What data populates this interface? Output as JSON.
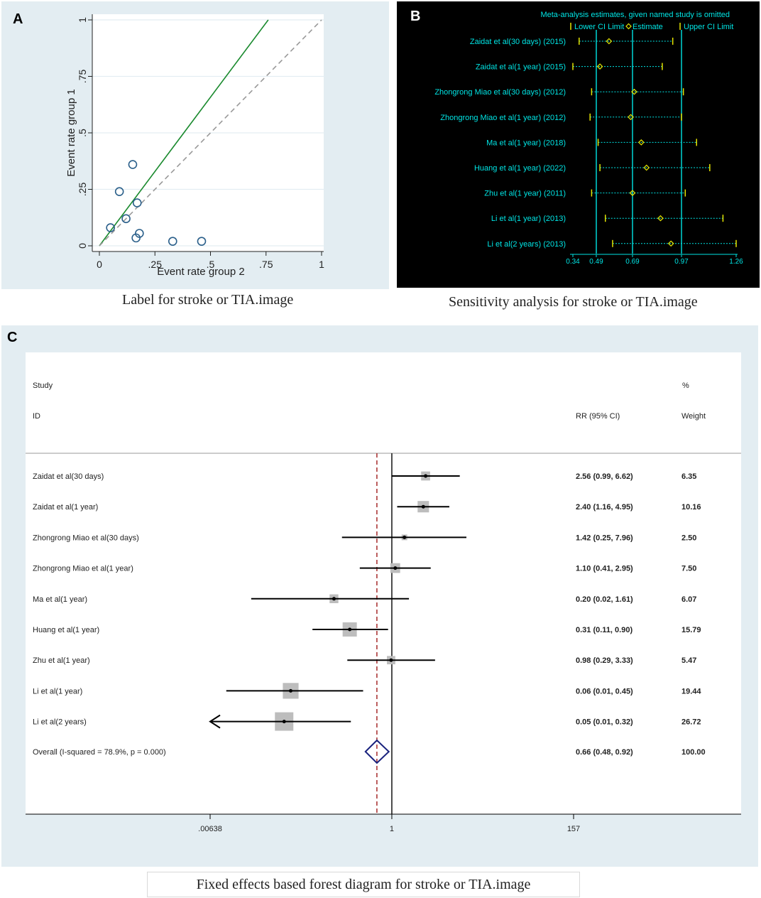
{
  "panels": {
    "a": {
      "label": "A",
      "caption": "Label for stroke or TIA.image",
      "chart_data": {
        "type": "scatter",
        "xlabel": "Event rate group 2",
        "ylabel": "Event rate group 1",
        "xlim": [
          0,
          1
        ],
        "ylim": [
          0,
          1
        ],
        "xticks": [
          0,
          0.25,
          0.5,
          0.75,
          1
        ],
        "xtick_labels": [
          "0",
          ".25",
          ".5",
          ".75",
          "1"
        ],
        "yticks": [
          0,
          0.25,
          0.5,
          0.75,
          1
        ],
        "ytick_labels": [
          "0",
          ".25",
          ".5",
          ".75",
          "1"
        ],
        "points": [
          {
            "x": 0.05,
            "y": 0.08
          },
          {
            "x": 0.09,
            "y": 0.24
          },
          {
            "x": 0.12,
            "y": 0.12
          },
          {
            "x": 0.15,
            "y": 0.36
          },
          {
            "x": 0.165,
            "y": 0.035
          },
          {
            "x": 0.17,
            "y": 0.19
          },
          {
            "x": 0.18,
            "y": 0.055
          },
          {
            "x": 0.33,
            "y": 0.02
          },
          {
            "x": 0.46,
            "y": 0.02
          }
        ],
        "lines": [
          {
            "name": "pooled",
            "from": [
              0,
              0
            ],
            "to": [
              0.76,
              1.0
            ],
            "color": "#1a8a2e",
            "style": "solid"
          },
          {
            "name": "identity",
            "from": [
              0,
              0
            ],
            "to": [
              1,
              1
            ],
            "color": "#999999",
            "style": "dashed"
          }
        ]
      }
    },
    "b": {
      "label": "B",
      "caption": "Sensitivity analysis for stroke or TIA.image",
      "chart_data": {
        "type": "scatter",
        "title": "Meta-analysis estimates, given named study is omitted",
        "legend": [
          "Lower CI Limit",
          "Estimate",
          "Upper CI Limit"
        ],
        "xticks": [
          0.34,
          0.49,
          0.69,
          0.97,
          1.26
        ],
        "xtick_labels": [
          "0.34",
          "0.49",
          "0.69",
          "0.97",
          "1.26"
        ],
        "reference_lines": [
          0.49,
          0.69,
          0.97
        ],
        "studies": [
          {
            "name": "Zaidat et al(30 days)",
            "year": "(2015)",
            "lower": 0.38,
            "estimate": 0.56,
            "upper": 0.92
          },
          {
            "name": "Zaidat et al(1 year)",
            "year": "(2015)",
            "lower": 0.34,
            "estimate": 0.51,
            "upper": 0.86
          },
          {
            "name": "Zhongrong Miao et al(30 days)",
            "year": "(2012)",
            "lower": 0.46,
            "estimate": 0.7,
            "upper": 0.98
          },
          {
            "name": "Zhongrong Miao et al(1 year)",
            "year": "(2012)",
            "lower": 0.45,
            "estimate": 0.68,
            "upper": 0.97
          },
          {
            "name": "Ma et al(1 year)",
            "year": "(2018)",
            "lower": 0.5,
            "estimate": 0.74,
            "upper": 1.05
          },
          {
            "name": "Huang et al(1 year)",
            "year": "(2022)",
            "lower": 0.51,
            "estimate": 0.77,
            "upper": 1.12
          },
          {
            "name": "Zhu et al(1 year)",
            "year": "(2011)",
            "lower": 0.46,
            "estimate": 0.69,
            "upper": 0.99
          },
          {
            "name": "Li et al(1 year)",
            "year": "(2013)",
            "lower": 0.54,
            "estimate": 0.85,
            "upper": 1.19
          },
          {
            "name": "Li et al(2 years)",
            "year": "(2013)",
            "lower": 0.58,
            "estimate": 0.91,
            "upper": 1.26
          }
        ]
      }
    },
    "c": {
      "label": "C",
      "caption": "Fixed effects based forest diagram for stroke or TIA.image",
      "chart_data": {
        "type": "forest",
        "header_study": "Study",
        "header_id": "ID",
        "header_rr": "RR (95% CI)",
        "header_pct": "%",
        "header_weight": "Weight",
        "scale": "log",
        "xticks": [
          0.00638,
          1,
          157
        ],
        "xtick_labels": [
          ".00638",
          "1",
          "157"
        ],
        "null_value": 1,
        "pooled_line": 0.66,
        "studies": [
          {
            "name": "Zaidat et al(30 days)",
            "rr": 2.56,
            "lower": 0.99,
            "upper": 6.62,
            "ci_text": "2.56 (0.99, 6.62)",
            "weight": 6.35,
            "weight_text": "6.35"
          },
          {
            "name": "Zaidat et al(1 year)",
            "rr": 2.4,
            "lower": 1.16,
            "upper": 4.95,
            "ci_text": "2.40 (1.16, 4.95)",
            "weight": 10.16,
            "weight_text": "10.16"
          },
          {
            "name": "Zhongrong Miao et al(30 days)",
            "rr": 1.42,
            "lower": 0.25,
            "upper": 7.96,
            "ci_text": "1.42 (0.25, 7.96)",
            "weight": 2.5,
            "weight_text": "2.50"
          },
          {
            "name": "Zhongrong Miao et al(1 year)",
            "rr": 1.1,
            "lower": 0.41,
            "upper": 2.95,
            "ci_text": "1.10 (0.41, 2.95)",
            "weight": 7.5,
            "weight_text": "7.50"
          },
          {
            "name": "Ma et al(1 year)",
            "rr": 0.2,
            "lower": 0.02,
            "upper": 1.61,
            "ci_text": "0.20 (0.02, 1.61)",
            "weight": 6.07,
            "weight_text": "6.07"
          },
          {
            "name": "Huang et al(1 year)",
            "rr": 0.31,
            "lower": 0.11,
            "upper": 0.9,
            "ci_text": "0.31 (0.11, 0.90)",
            "weight": 15.79,
            "weight_text": "15.79"
          },
          {
            "name": "Zhu et al(1 year)",
            "rr": 0.98,
            "lower": 0.29,
            "upper": 3.33,
            "ci_text": "0.98 (0.29, 3.33)",
            "weight": 5.47,
            "weight_text": "5.47"
          },
          {
            "name": "Li et al(1 year)",
            "rr": 0.06,
            "lower": 0.01,
            "upper": 0.45,
            "ci_text": "0.06 (0.01, 0.45)",
            "weight": 19.44,
            "weight_text": "19.44"
          },
          {
            "name": "Li et al(2 years)",
            "rr": 0.05,
            "lower": 0.01,
            "upper": 0.32,
            "ci_text": "0.05 (0.01, 0.32)",
            "weight": 26.72,
            "weight_text": "26.72",
            "truncated_left": true
          }
        ],
        "overall": {
          "name": "Overall  (I-squared = 78.9%, p = 0.000)",
          "rr": 0.66,
          "lower": 0.48,
          "upper": 0.92,
          "ci_text": "0.66 (0.48, 0.92)",
          "weight_text": "100.00"
        }
      }
    }
  },
  "colors": {
    "panel_bg": "#e3edf2",
    "b_cyan": "#00e5e5",
    "b_yellow": "#e5e500",
    "a_green": "#1a8a2e",
    "a_marker": "#2a5f8a",
    "c_diamond": "#1a237e",
    "c_dashed": "#a01a1a",
    "c_box": "#bdbdbd"
  }
}
